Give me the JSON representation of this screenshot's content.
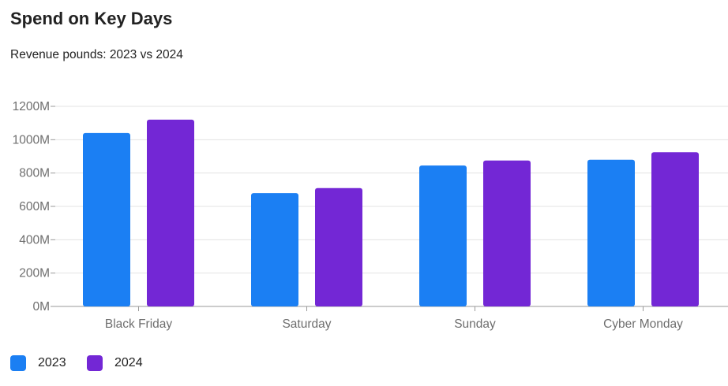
{
  "header": {
    "title": "Spend on Key Days",
    "subtitle": "Revenue pounds: 2023 vs 2024"
  },
  "colors": {
    "series_2023": "#1B7FF3",
    "series_2024": "#7327D5",
    "grid": "#E3E3E3",
    "axis": "#9A9A9A"
  },
  "chart_data": {
    "type": "bar",
    "categories": [
      "Black Friday",
      "Saturday",
      "Sunday",
      "Cyber Monday"
    ],
    "series": [
      {
        "name": "2023",
        "values": [
          1040,
          680,
          845,
          880
        ]
      },
      {
        "name": "2024",
        "values": [
          1120,
          710,
          875,
          925
        ]
      }
    ],
    "y_ticks": [
      0,
      200,
      400,
      600,
      800,
      1000,
      1200
    ],
    "y_tick_labels": [
      "0M",
      "200M",
      "400M",
      "600M",
      "800M",
      "1000M",
      "1200M"
    ],
    "ylim": [
      0,
      1200
    ],
    "title": "Spend on Key Days",
    "subtitle": "Revenue pounds: 2023 vs 2024",
    "xlabel": "",
    "ylabel": "",
    "grid": true,
    "legend_position": "bottom-left"
  }
}
